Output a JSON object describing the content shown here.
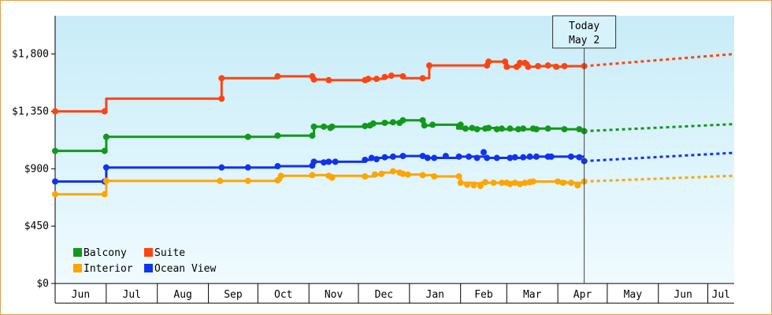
{
  "chart_data": {
    "type": "line",
    "y_ticks": [
      "$0",
      "$450",
      "$900",
      "$1,350",
      "$1,800"
    ],
    "ylim": [
      0,
      2100
    ],
    "months": [
      {
        "label": "Jun",
        "start": 0,
        "end": 31
      },
      {
        "label": "Jul",
        "start": 31,
        "end": 62
      },
      {
        "label": "Aug",
        "start": 62,
        "end": 93
      },
      {
        "label": "Sep",
        "start": 93,
        "end": 123
      },
      {
        "label": "Oct",
        "start": 123,
        "end": 154
      },
      {
        "label": "Nov",
        "start": 154,
        "end": 184
      },
      {
        "label": "Dec",
        "start": 184,
        "end": 215
      },
      {
        "label": "Jan",
        "start": 215,
        "end": 246
      },
      {
        "label": "Feb",
        "start": 246,
        "end": 274
      },
      {
        "label": "Mar",
        "start": 274,
        "end": 305
      },
      {
        "label": "Apr",
        "start": 305,
        "end": 335
      },
      {
        "label": "May",
        "start": 335,
        "end": 366
      },
      {
        "label": "Jun",
        "start": 366,
        "end": 396
      },
      {
        "label": "Jul",
        "start": 396,
        "end": 412
      }
    ],
    "x_range_days": [
      0,
      412
    ],
    "today": {
      "line1": "Today",
      "line2": "May 2",
      "day": 321
    },
    "legend": [
      {
        "name": "Balcony",
        "color": "#11991a"
      },
      {
        "name": "Suite",
        "color": "#ff4411"
      },
      {
        "name": "Interior",
        "color": "#ffa500"
      },
      {
        "name": "Ocean View",
        "color": "#1133ee"
      }
    ],
    "series": [
      {
        "name": "Suite",
        "color": "#ff4411",
        "points": [
          [
            0,
            1350
          ],
          [
            30,
            1350
          ],
          [
            31,
            1450
          ],
          [
            100,
            1450
          ],
          [
            101,
            1610
          ],
          [
            135,
            1625
          ],
          [
            156,
            1625
          ],
          [
            157,
            1600
          ],
          [
            166,
            1595
          ],
          [
            188,
            1595
          ],
          [
            190,
            1605
          ],
          [
            195,
            1605
          ],
          [
            200,
            1620
          ],
          [
            204,
            1630
          ],
          [
            210,
            1625
          ],
          [
            211,
            1610
          ],
          [
            223,
            1610
          ],
          [
            227,
            1710
          ],
          [
            262,
            1710
          ],
          [
            263,
            1740
          ],
          [
            273,
            1740
          ],
          [
            274,
            1700
          ],
          [
            280,
            1700
          ],
          [
            282,
            1730
          ],
          [
            285,
            1730
          ],
          [
            287,
            1700
          ],
          [
            293,
            1705
          ],
          [
            299,
            1710
          ],
          [
            304,
            1700
          ],
          [
            309,
            1705
          ],
          [
            321,
            1705
          ]
        ],
        "markers": [
          [
            0,
            1350
          ],
          [
            30,
            1350
          ],
          [
            101,
            1450
          ],
          [
            101,
            1610
          ],
          [
            135,
            1625
          ],
          [
            156,
            1625
          ],
          [
            157,
            1600
          ],
          [
            166,
            1595
          ],
          [
            188,
            1595
          ],
          [
            190,
            1605
          ],
          [
            195,
            1605
          ],
          [
            200,
            1620
          ],
          [
            204,
            1630
          ],
          [
            211,
            1625
          ],
          [
            223,
            1610
          ],
          [
            227,
            1710
          ],
          [
            262,
            1710
          ],
          [
            263,
            1740
          ],
          [
            273,
            1740
          ],
          [
            274,
            1700
          ],
          [
            280,
            1700
          ],
          [
            282,
            1730
          ],
          [
            285,
            1730
          ],
          [
            287,
            1700
          ],
          [
            293,
            1705
          ],
          [
            299,
            1710
          ],
          [
            304,
            1700
          ],
          [
            309,
            1705
          ],
          [
            321,
            1705
          ]
        ],
        "forecast": [
          [
            321,
            1705
          ],
          [
            412,
            1800
          ]
        ]
      },
      {
        "name": "Balcony",
        "color": "#11991a",
        "points": [
          [
            0,
            1040
          ],
          [
            30,
            1040
          ],
          [
            31,
            1150
          ],
          [
            117,
            1150
          ],
          [
            135,
            1160
          ],
          [
            156,
            1160
          ],
          [
            157,
            1230
          ],
          [
            168,
            1230
          ],
          [
            188,
            1235
          ],
          [
            191,
            1240
          ],
          [
            193,
            1255
          ],
          [
            200,
            1260
          ],
          [
            205,
            1265
          ],
          [
            210,
            1270
          ],
          [
            211,
            1280
          ],
          [
            223,
            1280
          ],
          [
            224,
            1240
          ],
          [
            229,
            1245
          ],
          [
            243,
            1245
          ],
          [
            244,
            1215
          ],
          [
            256,
            1215
          ],
          [
            263,
            1220
          ],
          [
            268,
            1210
          ],
          [
            281,
            1210
          ],
          [
            290,
            1215
          ],
          [
            299,
            1215
          ],
          [
            309,
            1210
          ],
          [
            321,
            1210
          ]
        ],
        "markers": [
          [
            0,
            1040
          ],
          [
            30,
            1040
          ],
          [
            31,
            1150
          ],
          [
            117,
            1150
          ],
          [
            135,
            1160
          ],
          [
            156,
            1160
          ],
          [
            157,
            1230
          ],
          [
            163,
            1230
          ],
          [
            167,
            1220
          ],
          [
            168,
            1230
          ],
          [
            188,
            1235
          ],
          [
            191,
            1240
          ],
          [
            193,
            1255
          ],
          [
            200,
            1260
          ],
          [
            205,
            1265
          ],
          [
            209,
            1260
          ],
          [
            211,
            1280
          ],
          [
            223,
            1280
          ],
          [
            224,
            1240
          ],
          [
            229,
            1245
          ],
          [
            246,
            1245
          ],
          [
            249,
            1215
          ],
          [
            253,
            1220
          ],
          [
            256,
            1210
          ],
          [
            261,
            1215
          ],
          [
            263,
            1220
          ],
          [
            268,
            1210
          ],
          [
            271,
            1215
          ],
          [
            276,
            1215
          ],
          [
            281,
            1210
          ],
          [
            284,
            1215
          ],
          [
            290,
            1215
          ],
          [
            292,
            1210
          ],
          [
            299,
            1215
          ],
          [
            309,
            1210
          ],
          [
            318,
            1210
          ],
          [
            321,
            1195
          ]
        ],
        "forecast": [
          [
            321,
            1195
          ],
          [
            412,
            1250
          ]
        ]
      },
      {
        "name": "Ocean View",
        "color": "#1133ee",
        "points": [
          [
            0,
            800
          ],
          [
            30,
            800
          ],
          [
            31,
            910
          ],
          [
            101,
            910
          ],
          [
            117,
            910
          ],
          [
            135,
            920
          ],
          [
            156,
            925
          ],
          [
            157,
            955
          ],
          [
            170,
            955
          ],
          [
            188,
            970
          ],
          [
            192,
            985
          ],
          [
            200,
            990
          ],
          [
            205,
            995
          ],
          [
            211,
            1000
          ],
          [
            223,
            1000
          ],
          [
            226,
            985
          ],
          [
            230,
            985
          ],
          [
            245,
            995
          ],
          [
            260,
            995
          ],
          [
            261,
            985
          ],
          [
            268,
            985
          ],
          [
            279,
            985
          ],
          [
            284,
            990
          ],
          [
            292,
            995
          ],
          [
            321,
            995
          ]
        ],
        "markers": [
          [
            0,
            800
          ],
          [
            30,
            800
          ],
          [
            31,
            910
          ],
          [
            101,
            910
          ],
          [
            117,
            910
          ],
          [
            135,
            920
          ],
          [
            156,
            925
          ],
          [
            157,
            955
          ],
          [
            163,
            950
          ],
          [
            166,
            955
          ],
          [
            170,
            955
          ],
          [
            188,
            970
          ],
          [
            192,
            985
          ],
          [
            195,
            975
          ],
          [
            200,
            990
          ],
          [
            205,
            995
          ],
          [
            211,
            1000
          ],
          [
            223,
            1000
          ],
          [
            226,
            985
          ],
          [
            230,
            985
          ],
          [
            237,
            1000
          ],
          [
            245,
            995
          ],
          [
            251,
            995
          ],
          [
            256,
            985
          ],
          [
            260,
            1030
          ],
          [
            262,
            985
          ],
          [
            268,
            985
          ],
          [
            276,
            985
          ],
          [
            279,
            990
          ],
          [
            284,
            990
          ],
          [
            288,
            995
          ],
          [
            292,
            995
          ],
          [
            299,
            995
          ],
          [
            301,
            995
          ],
          [
            313,
            995
          ],
          [
            318,
            990
          ],
          [
            321,
            960
          ]
        ],
        "forecast": [
          [
            321,
            960
          ],
          [
            412,
            1025
          ]
        ]
      },
      {
        "name": "Interior",
        "color": "#ffa500",
        "points": [
          [
            0,
            700
          ],
          [
            30,
            700
          ],
          [
            31,
            805
          ],
          [
            100,
            805
          ],
          [
            117,
            805
          ],
          [
            135,
            810
          ],
          [
            137,
            845
          ],
          [
            156,
            850
          ],
          [
            168,
            845
          ],
          [
            188,
            840
          ],
          [
            194,
            855
          ],
          [
            198,
            870
          ],
          [
            205,
            880
          ],
          [
            210,
            865
          ],
          [
            214,
            855
          ],
          [
            223,
            850
          ],
          [
            230,
            840
          ],
          [
            245,
            840
          ],
          [
            246,
            790
          ],
          [
            255,
            785
          ],
          [
            258,
            790
          ],
          [
            271,
            790
          ],
          [
            274,
            795
          ],
          [
            279,
            790
          ],
          [
            285,
            790
          ],
          [
            290,
            800
          ],
          [
            303,
            800
          ],
          [
            310,
            790
          ],
          [
            321,
            800
          ]
        ],
        "markers": [
          [
            0,
            700
          ],
          [
            30,
            700
          ],
          [
            31,
            805
          ],
          [
            100,
            805
          ],
          [
            117,
            805
          ],
          [
            135,
            810
          ],
          [
            137,
            845
          ],
          [
            156,
            850
          ],
          [
            166,
            845
          ],
          [
            168,
            830
          ],
          [
            188,
            840
          ],
          [
            194,
            855
          ],
          [
            198,
            860
          ],
          [
            205,
            880
          ],
          [
            209,
            870
          ],
          [
            211,
            860
          ],
          [
            214,
            855
          ],
          [
            223,
            850
          ],
          [
            230,
            840
          ],
          [
            245,
            840
          ],
          [
            246,
            790
          ],
          [
            250,
            775
          ],
          [
            254,
            770
          ],
          [
            258,
            765
          ],
          [
            261,
            795
          ],
          [
            266,
            790
          ],
          [
            271,
            790
          ],
          [
            274,
            790
          ],
          [
            276,
            780
          ],
          [
            279,
            790
          ],
          [
            282,
            780
          ],
          [
            285,
            790
          ],
          [
            288,
            795
          ],
          [
            290,
            800
          ],
          [
            305,
            800
          ],
          [
            308,
            790
          ],
          [
            313,
            790
          ],
          [
            317,
            770
          ],
          [
            321,
            800
          ]
        ],
        "forecast": [
          [
            321,
            800
          ],
          [
            412,
            845
          ]
        ]
      }
    ]
  }
}
